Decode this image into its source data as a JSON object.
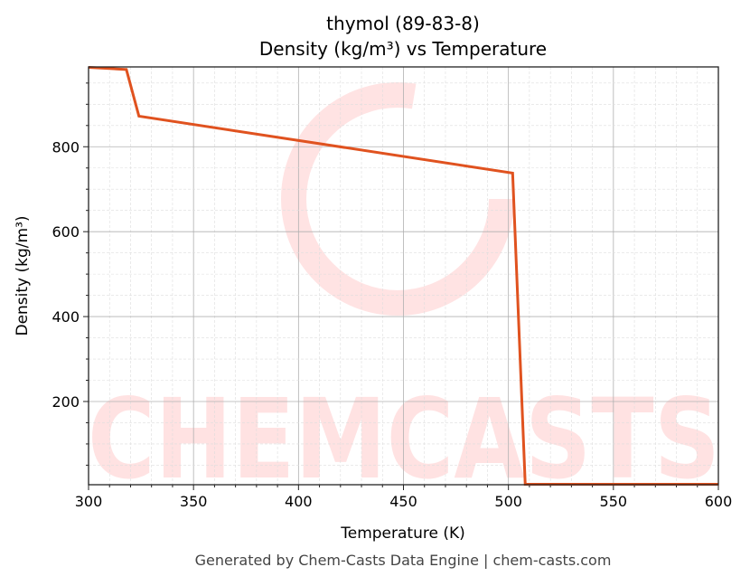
{
  "chart_data": {
    "type": "line",
    "title": "thymol (89-83-8)",
    "subtitle": "Density (kg/m³) vs Temperature",
    "xlabel": "Temperature (K)",
    "ylabel": "Density (kg/m³)",
    "xlim": [
      300,
      600
    ],
    "ylim": [
      4,
      988
    ],
    "xticks": [
      300,
      350,
      400,
      450,
      500,
      550,
      600
    ],
    "yticks": [
      200,
      400,
      600,
      800
    ],
    "grid": true,
    "series": [
      {
        "color": "#e0521f",
        "x": [
          300,
          318,
          324,
          502,
          508,
          600
        ],
        "y": [
          987,
          982,
          872,
          738,
          5,
          5
        ]
      }
    ],
    "watermark": "CHEMCASTS",
    "footer": "Generated by Chem-Casts Data Engine | chem-casts.com"
  }
}
